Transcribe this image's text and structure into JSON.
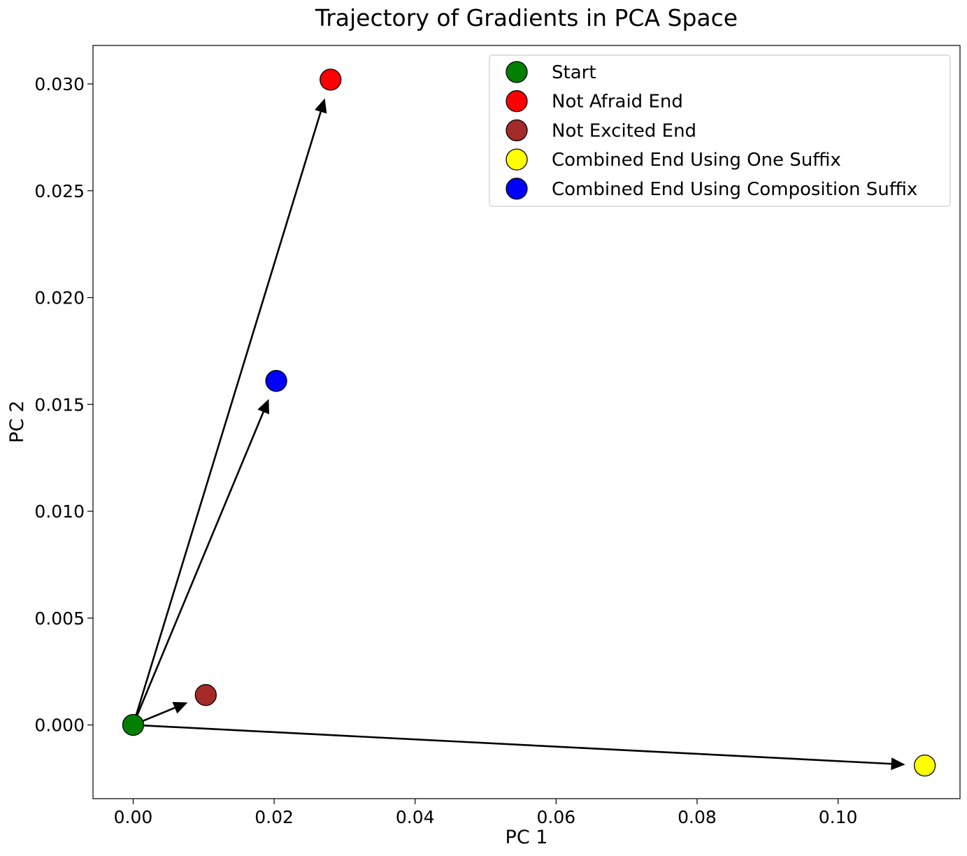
{
  "chart_data": {
    "type": "scatter",
    "title": "Trajectory of Gradients in PCA Space",
    "xlabel": "PC 1",
    "ylabel": "PC 2",
    "xlim": [
      -0.0057,
      0.1173
    ],
    "ylim": [
      -0.00345,
      0.0318
    ],
    "xticks": [
      0.0,
      0.02,
      0.04,
      0.06,
      0.08,
      0.1
    ],
    "xtick_labels": [
      "0.00",
      "0.02",
      "0.04",
      "0.06",
      "0.08",
      "0.10"
    ],
    "yticks": [
      0.0,
      0.005,
      0.01,
      0.015,
      0.02,
      0.025,
      0.03
    ],
    "ytick_labels": [
      "0.000",
      "0.005",
      "0.010",
      "0.015",
      "0.020",
      "0.025",
      "0.030"
    ],
    "grid": false,
    "legend_position": "top-right",
    "series": [
      {
        "name": "Start",
        "color": "#008000",
        "x": 0.0,
        "y": 0.0
      },
      {
        "name": "Not Afraid End",
        "color": "#ff0000",
        "x": 0.028,
        "y": 0.0302
      },
      {
        "name": "Not Excited End",
        "color": "#a52a2a",
        "x": 0.0103,
        "y": 0.0014
      },
      {
        "name": "Combined End Using One Suffix",
        "color": "#ffff00",
        "x": 0.1123,
        "y": -0.0019
      },
      {
        "name": "Combined End Using Composition Suffix",
        "color": "#0000ff",
        "x": 0.0203,
        "y": 0.0161
      }
    ],
    "arrows": [
      {
        "from": "Start",
        "to": "Not Afraid End"
      },
      {
        "from": "Start",
        "to": "Not Excited End"
      },
      {
        "from": "Start",
        "to": "Combined End Using One Suffix"
      },
      {
        "from": "Start",
        "to": "Combined End Using Composition Suffix"
      }
    ]
  }
}
